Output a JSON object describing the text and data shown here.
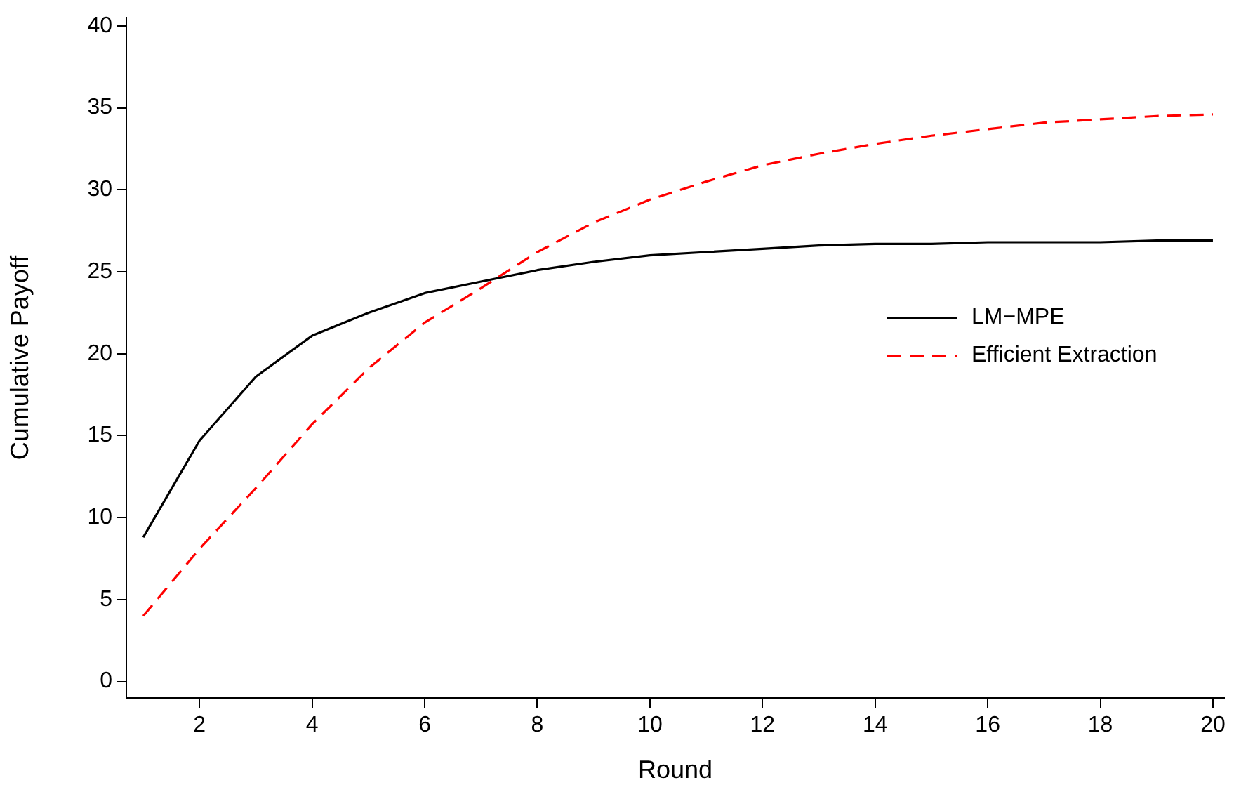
{
  "chart_data": {
    "type": "line",
    "xlabel": "Round",
    "ylabel": "Cumulative Payoff",
    "x": [
      1,
      2,
      3,
      4,
      5,
      6,
      7,
      8,
      9,
      10,
      11,
      12,
      13,
      14,
      15,
      16,
      17,
      18,
      19,
      20
    ],
    "series": [
      {
        "name": "LM−MPE",
        "color": "#000000",
        "line_style": "solid",
        "values": [
          8.8,
          14.7,
          18.6,
          21.1,
          22.5,
          23.7,
          24.4,
          25.1,
          25.6,
          26.0,
          26.2,
          26.4,
          26.6,
          26.7,
          26.7,
          26.8,
          26.8,
          26.8,
          26.9,
          26.9
        ]
      },
      {
        "name": "Efficient Extraction",
        "color": "#ff0000",
        "line_style": "dashed",
        "values": [
          4.0,
          8.1,
          11.8,
          15.7,
          19.1,
          21.9,
          24.0,
          26.2,
          28.0,
          29.4,
          30.5,
          31.5,
          32.2,
          32.8,
          33.3,
          33.7,
          34.1,
          34.3,
          34.5,
          34.6
        ]
      }
    ],
    "xlim": [
      0.7,
      20.2
    ],
    "xticks": [
      2,
      4,
      6,
      8,
      10,
      12,
      14,
      16,
      18,
      20
    ],
    "ylim": [
      -1,
      40.5
    ],
    "yticks": [
      0,
      5,
      10,
      15,
      20,
      25,
      30,
      35,
      40
    ],
    "grid": false,
    "legend": "right",
    "marker": "none"
  }
}
